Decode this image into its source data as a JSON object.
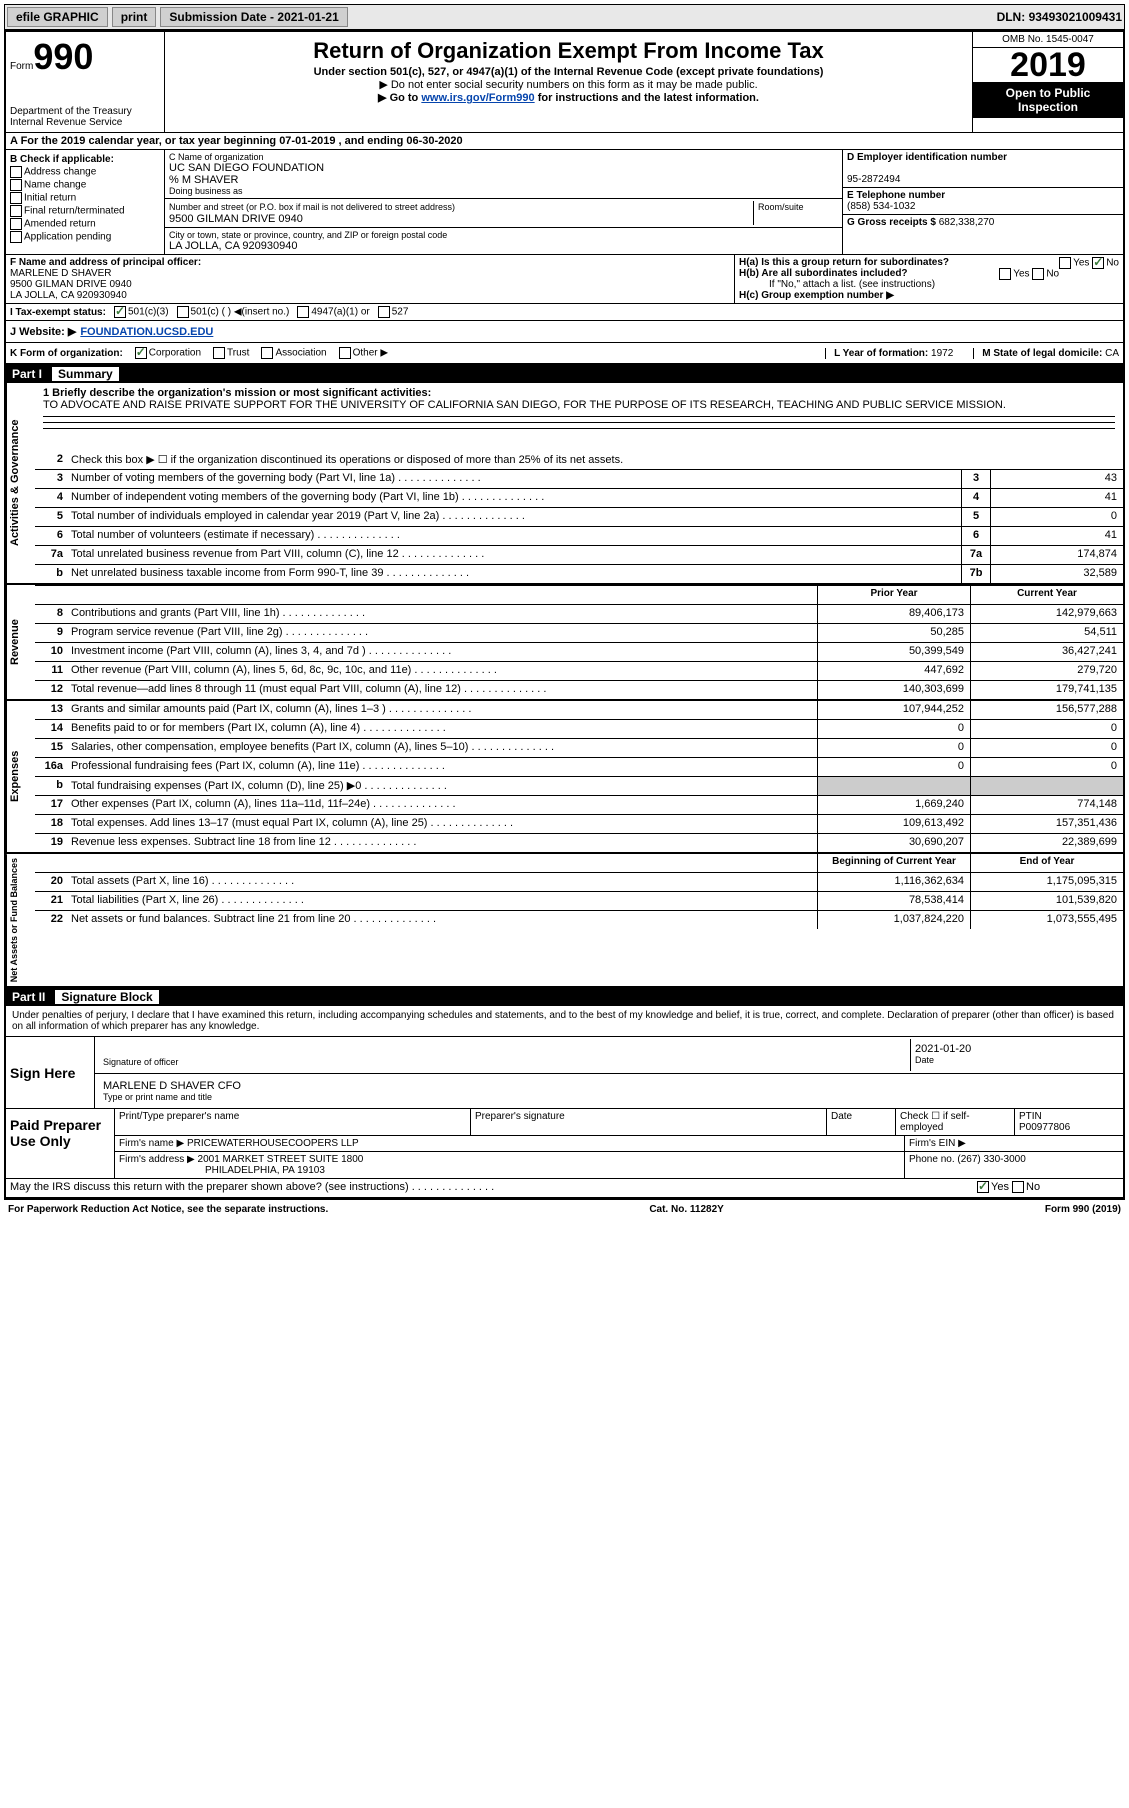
{
  "topbar": {
    "efile": "efile GRAPHIC",
    "print": "print",
    "submission_label": "Submission Date - ",
    "submission_date": "2021-01-21",
    "dln_label": "DLN: ",
    "dln": "93493021009431"
  },
  "header": {
    "form_label": "Form",
    "form_number": "990",
    "dept1": "Department of the Treasury",
    "dept2": "Internal Revenue Service",
    "title": "Return of Organization Exempt From Income Tax",
    "subtitle": "Under section 501(c), 527, or 4947(a)(1) of the Internal Revenue Code (except private foundations)",
    "line1": "▶ Do not enter social security numbers on this form as it may be made public.",
    "line2_pre": "▶ Go to ",
    "line2_link": "www.irs.gov/Form990",
    "line2_post": " for instructions and the latest information.",
    "omb": "OMB No. 1545-0047",
    "year": "2019",
    "inspection1": "Open to Public",
    "inspection2": "Inspection"
  },
  "sectionA": {
    "text": "A For the 2019 calendar year, or tax year beginning 07-01-2019   , and ending 06-30-2020"
  },
  "sectionB": {
    "label": "B Check if applicable:",
    "opts": [
      "Address change",
      "Name change",
      "Initial return",
      "Final return/terminated",
      "Amended return",
      "Application pending"
    ]
  },
  "sectionC": {
    "name_label": "C Name of organization",
    "name": "UC SAN DIEGO FOUNDATION",
    "care": "% M SHAVER",
    "dba_label": "Doing business as",
    "addr_label": "Number and street (or P.O. box if mail is not delivered to street address)",
    "room_label": "Room/suite",
    "addr": "9500 GILMAN DRIVE 0940",
    "city_label": "City or town, state or province, country, and ZIP or foreign postal code",
    "city": "LA JOLLA, CA  920930940"
  },
  "sectionDEG": {
    "d_label": "D Employer identification number",
    "d_val": "95-2872494",
    "e_label": "E Telephone number",
    "e_val": "(858) 534-1032",
    "g_label": "G Gross receipts $ ",
    "g_val": "682,338,270"
  },
  "sectionF": {
    "label": "F Name and address of principal officer:",
    "name": "MARLENE D SHAVER",
    "addr1": "9500 GILMAN DRIVE 0940",
    "addr2": "LA JOLLA, CA  920930940"
  },
  "sectionH": {
    "a": "H(a)  Is this a group return for subordinates?",
    "b": "H(b)  Are all subordinates included?",
    "b_note": "If \"No,\" attach a list. (see instructions)",
    "c": "H(c)  Group exemption number ▶"
  },
  "sectionI": {
    "label": "I Tax-exempt status:",
    "opt1": "501(c)(3)",
    "opt2": "501(c) (  ) ◀(insert no.)",
    "opt3": "4947(a)(1) or",
    "opt4": "527"
  },
  "sectionJ": {
    "label": "J   Website: ▶",
    "link": "FOUNDATION.UCSD.EDU"
  },
  "sectionK": {
    "label": "K Form of organization:",
    "opts": [
      "Corporation",
      "Trust",
      "Association",
      "Other ▶"
    ],
    "l_label": "L Year of formation: ",
    "l_val": "1972",
    "m_label": "M State of legal domicile: ",
    "m_val": "CA"
  },
  "part1": {
    "num": "Part I",
    "title": "Summary"
  },
  "governance": {
    "label": "Activities & Governance",
    "line1_label": "1   Briefly describe the organization's mission or most significant activities:",
    "mission": "TO ADVOCATE AND RAISE PRIVATE SUPPORT FOR THE UNIVERSITY OF CALIFORNIA SAN DIEGO, FOR THE PURPOSE OF ITS RESEARCH, TEACHING AND PUBLIC SERVICE MISSION.",
    "line2": "Check this box ▶ ☐  if the organization discontinued its operations or disposed of more than 25% of its net assets.",
    "rows": [
      {
        "n": "3",
        "t": "Number of voting members of the governing body (Part VI, line 1a)",
        "box": "3",
        "v": "43"
      },
      {
        "n": "4",
        "t": "Number of independent voting members of the governing body (Part VI, line 1b)",
        "box": "4",
        "v": "41"
      },
      {
        "n": "5",
        "t": "Total number of individuals employed in calendar year 2019 (Part V, line 2a)",
        "box": "5",
        "v": "0"
      },
      {
        "n": "6",
        "t": "Total number of volunteers (estimate if necessary)",
        "box": "6",
        "v": "41"
      },
      {
        "n": "7a",
        "t": "Total unrelated business revenue from Part VIII, column (C), line 12",
        "box": "7a",
        "v": "174,874"
      },
      {
        "n": "b",
        "t": "Net unrelated business taxable income from Form 990-T, line 39",
        "box": "7b",
        "v": "32,589"
      }
    ]
  },
  "revenue": {
    "label": "Revenue",
    "head_prior": "Prior Year",
    "head_current": "Current Year",
    "rows": [
      {
        "n": "8",
        "t": "Contributions and grants (Part VIII, line 1h)",
        "p": "89,406,173",
        "c": "142,979,663"
      },
      {
        "n": "9",
        "t": "Program service revenue (Part VIII, line 2g)",
        "p": "50,285",
        "c": "54,511"
      },
      {
        "n": "10",
        "t": "Investment income (Part VIII, column (A), lines 3, 4, and 7d )",
        "p": "50,399,549",
        "c": "36,427,241"
      },
      {
        "n": "11",
        "t": "Other revenue (Part VIII, column (A), lines 5, 6d, 8c, 9c, 10c, and 11e)",
        "p": "447,692",
        "c": "279,720"
      },
      {
        "n": "12",
        "t": "Total revenue—add lines 8 through 11 (must equal Part VIII, column (A), line 12)",
        "p": "140,303,699",
        "c": "179,741,135"
      }
    ]
  },
  "expenses": {
    "label": "Expenses",
    "rows": [
      {
        "n": "13",
        "t": "Grants and similar amounts paid (Part IX, column (A), lines 1–3 )",
        "p": "107,944,252",
        "c": "156,577,288"
      },
      {
        "n": "14",
        "t": "Benefits paid to or for members (Part IX, column (A), line 4)",
        "p": "0",
        "c": "0"
      },
      {
        "n": "15",
        "t": "Salaries, other compensation, employee benefits (Part IX, column (A), lines 5–10)",
        "p": "0",
        "c": "0"
      },
      {
        "n": "16a",
        "t": "Professional fundraising fees (Part IX, column (A), line 11e)",
        "p": "0",
        "c": "0"
      },
      {
        "n": "b",
        "t": "Total fundraising expenses (Part IX, column (D), line 25) ▶0",
        "p": "",
        "c": "",
        "shaded": true
      },
      {
        "n": "17",
        "t": "Other expenses (Part IX, column (A), lines 11a–11d, 11f–24e)",
        "p": "1,669,240",
        "c": "774,148"
      },
      {
        "n": "18",
        "t": "Total expenses. Add lines 13–17 (must equal Part IX, column (A), line 25)",
        "p": "109,613,492",
        "c": "157,351,436"
      },
      {
        "n": "19",
        "t": "Revenue less expenses. Subtract line 18 from line 12",
        "p": "30,690,207",
        "c": "22,389,699"
      }
    ]
  },
  "netassets": {
    "label": "Net Assets or Fund Balances",
    "head_begin": "Beginning of Current Year",
    "head_end": "End of Year",
    "rows": [
      {
        "n": "20",
        "t": "Total assets (Part X, line 16)",
        "p": "1,116,362,634",
        "c": "1,175,095,315"
      },
      {
        "n": "21",
        "t": "Total liabilities (Part X, line 26)",
        "p": "78,538,414",
        "c": "101,539,820"
      },
      {
        "n": "22",
        "t": "Net assets or fund balances. Subtract line 21 from line 20",
        "p": "1,037,824,220",
        "c": "1,073,555,495"
      }
    ]
  },
  "part2": {
    "num": "Part II",
    "title": "Signature Block"
  },
  "signature": {
    "perjury": "Under penalties of perjury, I declare that I have examined this return, including accompanying schedules and statements, and to the best of my knowledge and belief, it is true, correct, and complete. Declaration of preparer (other than officer) is based on all information of which preparer has any knowledge.",
    "sign_here": "Sign Here",
    "sig_officer": "Signature of officer",
    "date_label": "Date",
    "date_val": "2021-01-20",
    "officer_name": "MARLENE D SHAVER  CFO",
    "type_name": "Type or print name and title"
  },
  "preparer": {
    "label": "Paid Preparer Use Only",
    "name_label": "Print/Type preparer's name",
    "sig_label": "Preparer's signature",
    "date_label": "Date",
    "check_label": "Check ☐ if self-employed",
    "ptin_label": "PTIN",
    "ptin": "P00977806",
    "firm_name_label": "Firm's name    ▶ ",
    "firm_name": "PRICEWATERHOUSECOOPERS LLP",
    "firm_ein_label": "Firm's EIN ▶",
    "firm_addr_label": "Firm's address ▶ ",
    "firm_addr1": "2001 MARKET STREET SUITE 1800",
    "firm_addr2": "PHILADELPHIA, PA  19103",
    "phone_label": "Phone no. ",
    "phone": "(267) 330-3000",
    "discuss": "May the IRS discuss this return with the preparer shown above? (see instructions)"
  },
  "footer": {
    "paperwork": "For Paperwork Reduction Act Notice, see the separate instructions.",
    "cat": "Cat. No. 11282Y",
    "form": "Form 990 (2019)"
  }
}
